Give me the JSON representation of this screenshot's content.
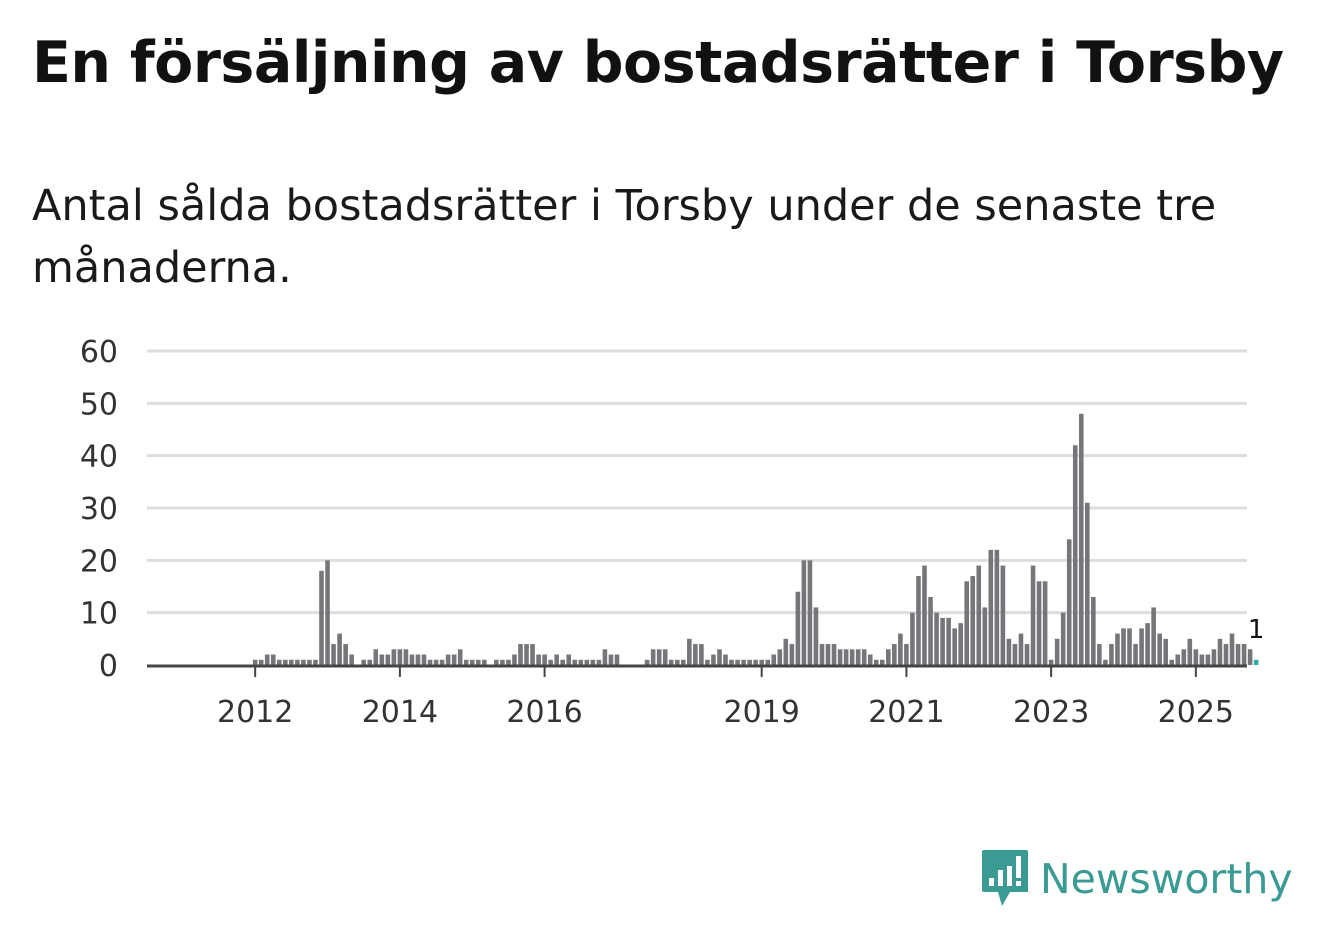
{
  "title": "En försäljning av bostadsrätter i Torsby",
  "subtitle": "Antal sålda bostadsrätter i Torsby under de senaste tre månaderna.",
  "brand": "Newsworthy",
  "colors": {
    "bar": "#76767a",
    "highlight": "#2ab0a4",
    "grid": "#dddddd",
    "axis": "#444444",
    "brand": "#3a9a94"
  },
  "chart_data": {
    "type": "bar",
    "title": "En försäljning av bostadsrätter i Torsby",
    "xlabel": "",
    "ylabel": "",
    "ylim": [
      0,
      60
    ],
    "yticks": [
      "0",
      "10",
      "20",
      "30",
      "40",
      "50",
      "60"
    ],
    "xticks": [
      {
        "label": "2012",
        "index": 9
      },
      {
        "label": "2014",
        "index": 33
      },
      {
        "label": "2016",
        "index": 57
      },
      {
        "label": "2019",
        "index": 93
      },
      {
        "label": "2021",
        "index": 117
      },
      {
        "label": "2023",
        "index": 141
      },
      {
        "label": "2025",
        "index": 165
      }
    ],
    "values": [
      0,
      0,
      0,
      0,
      0,
      0,
      0,
      0,
      0,
      1,
      1,
      2,
      2,
      1,
      1,
      1,
      1,
      1,
      1,
      1,
      18,
      20,
      4,
      6,
      4,
      2,
      0,
      1,
      1,
      3,
      2,
      2,
      3,
      3,
      3,
      2,
      2,
      2,
      1,
      1,
      1,
      2,
      2,
      3,
      1,
      1,
      1,
      1,
      0,
      1,
      1,
      1,
      2,
      4,
      4,
      4,
      2,
      2,
      1,
      2,
      1,
      2,
      1,
      1,
      1,
      1,
      1,
      3,
      2,
      2,
      0,
      0,
      0,
      0,
      1,
      3,
      3,
      3,
      1,
      1,
      1,
      5,
      4,
      4,
      1,
      2,
      3,
      2,
      1,
      1,
      1,
      1,
      1,
      1,
      1,
      2,
      3,
      5,
      4,
      14,
      20,
      20,
      11,
      4,
      4,
      4,
      3,
      3,
      3,
      3,
      3,
      2,
      1,
      1,
      3,
      4,
      6,
      4,
      10,
      17,
      19,
      13,
      10,
      9,
      9,
      7,
      8,
      16,
      17,
      19,
      11,
      22,
      22,
      19,
      5,
      4,
      6,
      4,
      19,
      16,
      16,
      1,
      5,
      10,
      24,
      42,
      48,
      31,
      13,
      4,
      1,
      4,
      6,
      7,
      7,
      4,
      7,
      8,
      11,
      6,
      5,
      1,
      2,
      3,
      5,
      3,
      2,
      2,
      3,
      5,
      4,
      6,
      4,
      4,
      3,
      1
    ],
    "highlight_last": true,
    "last_value_label": "1"
  }
}
